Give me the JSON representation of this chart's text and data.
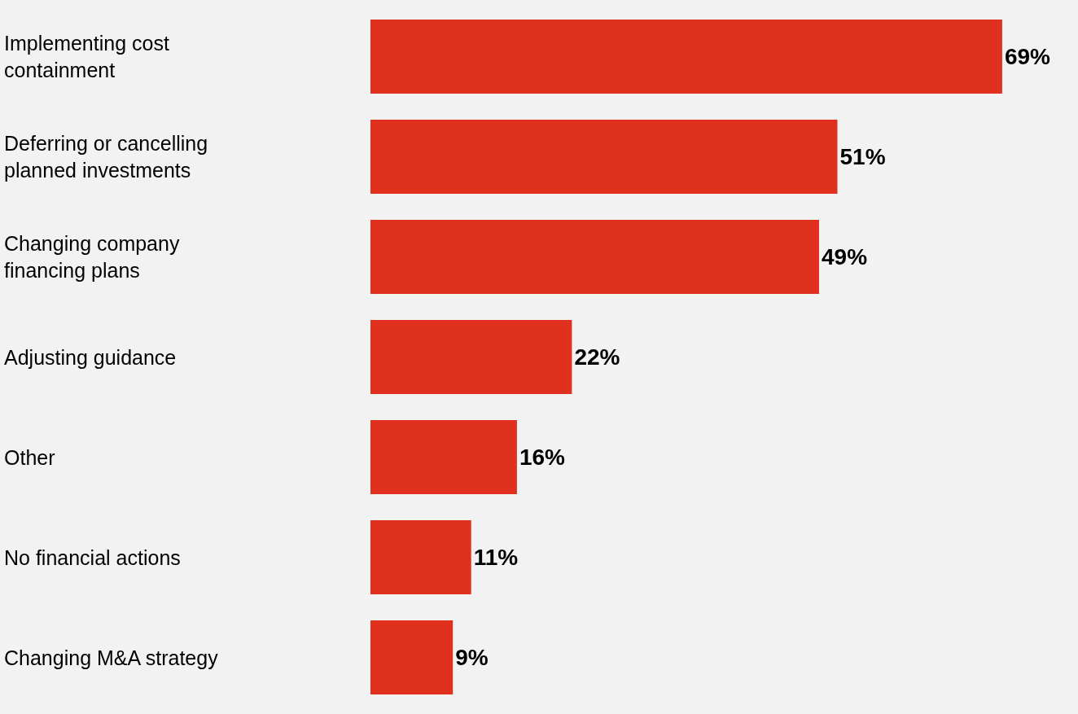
{
  "chart_data": {
    "type": "bar",
    "orientation": "horizontal",
    "relative": false,
    "categories": [
      "Implementing cost containment",
      "Deferring or cancelling planned investments",
      "Changing company financing plans",
      "Adjusting guidance",
      "Other",
      "No financial actions",
      "Changing M&A strategy"
    ],
    "values": [
      69,
      51,
      49,
      22,
      16,
      11,
      9
    ],
    "value_labels": [
      "69%",
      "51%",
      "49%",
      "22%",
      "16%",
      "11%",
      "9%"
    ],
    "color": "#e0301e",
    "grid": false,
    "legend": false,
    "tick_labels": false
  }
}
